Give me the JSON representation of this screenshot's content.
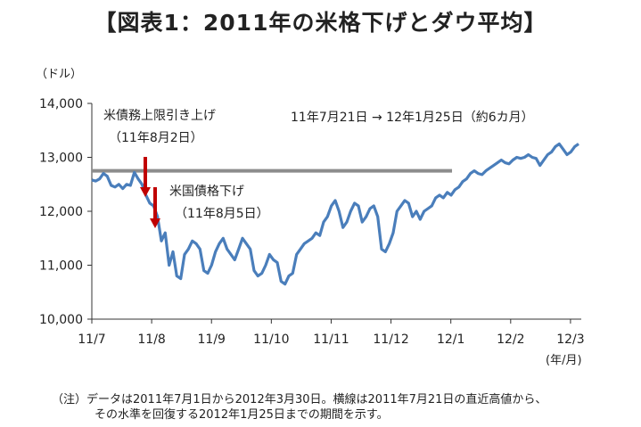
{
  "title": "【図表1：2011年の米格下げとダウ平均】",
  "chart_data": {
    "type": "line",
    "ylabel": "（ドル）",
    "xlabel": "(年/月)",
    "ylim": [
      10000,
      14000
    ],
    "yticks": [
      {
        "value": 10000,
        "label": "10,000"
      },
      {
        "value": 11000,
        "label": "11,000"
      },
      {
        "value": 12000,
        "label": "12,000"
      },
      {
        "value": 13000,
        "label": "13,000"
      },
      {
        "value": 14000,
        "label": "14,000"
      }
    ],
    "xticks": [
      "11/7",
      "11/8",
      "11/9",
      "11/10",
      "11/11",
      "11/12",
      "12/1",
      "12/2",
      "12/3"
    ],
    "series": [
      {
        "values": [
          12580,
          12560,
          12600,
          12700,
          12650,
          12480,
          12450,
          12500,
          12420,
          12500,
          12480,
          12720,
          12600,
          12500,
          12300,
          12150,
          12100,
          11900,
          11450,
          11600,
          11000,
          11250,
          10800,
          10750,
          11200,
          11300,
          11450,
          11400,
          11300,
          10900,
          10850,
          11000,
          11250,
          11400,
          11500,
          11300,
          11200,
          11100,
          11300,
          11500,
          11400,
          11300,
          10900,
          10800,
          10850,
          11000,
          11200,
          11100,
          11050,
          10700,
          10650,
          10800,
          10850,
          11200,
          11300,
          11400,
          11450,
          11500,
          11600,
          11550,
          11800,
          11900,
          12100,
          12200,
          12000,
          11700,
          11800,
          12000,
          12150,
          12100,
          11800,
          11900,
          12050,
          12100,
          11900,
          11300,
          11250,
          11400,
          11600,
          12000,
          12100,
          12200,
          12150,
          11900,
          12000,
          11850,
          12000,
          12050,
          12100,
          12250,
          12300,
          12250,
          12350,
          12300,
          12400,
          12450,
          12550,
          12600,
          12700,
          12750,
          12700,
          12680,
          12750,
          12800,
          12850,
          12900,
          12950,
          12900,
          12880,
          12950,
          13000,
          12980,
          13000,
          13050,
          13000,
          12980,
          12850,
          12950,
          13050,
          13100,
          13200,
          13250,
          13150,
          13050,
          13100,
          13200,
          13250
        ]
      }
    ],
    "reference_line": {
      "value": 12750
    },
    "annotations": [
      {
        "text": "米債務上限引き上げ",
        "sub": "（11年8月2日）"
      },
      {
        "text": "米国債格下げ",
        "sub": "（11年8月5日）"
      },
      {
        "text": "11年7月21日 → 12年1月25日（約6カ月）"
      }
    ],
    "colors": {
      "line": "#4a7ebb",
      "reference": "#8c8c8c",
      "arrow": "#c00000",
      "axis": "#333333"
    }
  },
  "note": {
    "line1": "（注）データは2011年7月1日から2012年3月30日。横線は2011年7月21日の直近高値から、",
    "line2": "その水準を回復する2012年1月25日までの期間を示す。"
  }
}
